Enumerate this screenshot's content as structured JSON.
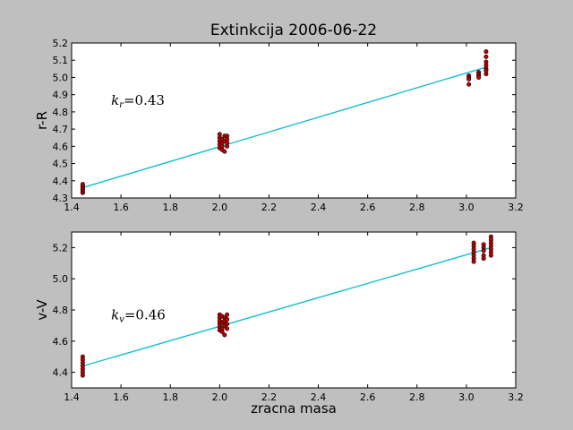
{
  "title": "Extinkcija 2006-06-22",
  "chart_data": [
    {
      "type": "scatter",
      "ylabel": "r-R",
      "xlabel": "",
      "annotation": {
        "k": "k",
        "sub": "r",
        "eq": "=0.43"
      },
      "xlim": [
        1.4,
        3.2
      ],
      "ylim": [
        4.3,
        5.2
      ],
      "xticks": [
        "1.4",
        "1.6",
        "1.8",
        "2.0",
        "2.2",
        "2.4",
        "2.6",
        "2.8",
        "3.0",
        "3.2"
      ],
      "yticks": [
        "4.3",
        "4.4",
        "4.5",
        "4.6",
        "4.7",
        "4.8",
        "4.9",
        "5.0",
        "5.1",
        "5.2"
      ],
      "fit": {
        "x": [
          1.445,
          3.08
        ],
        "y": [
          4.36,
          5.06
        ],
        "color": "#17becf"
      },
      "series": [
        {
          "color": "#c00000",
          "points": [
            [
              1.445,
              4.33
            ],
            [
              1.445,
              4.34
            ],
            [
              1.445,
              4.35
            ],
            [
              1.445,
              4.36
            ],
            [
              1.445,
              4.37
            ],
            [
              1.445,
              4.38
            ],
            [
              2.0,
              4.67
            ],
            [
              2.0,
              4.65
            ],
            [
              2.0,
              4.63
            ],
            [
              2.0,
              4.61
            ],
            [
              2.0,
              4.59
            ],
            [
              2.01,
              4.64
            ],
            [
              2.01,
              4.62
            ],
            [
              2.01,
              4.6
            ],
            [
              2.01,
              4.58
            ],
            [
              2.02,
              4.66
            ],
            [
              2.02,
              4.63
            ],
            [
              2.02,
              4.57
            ],
            [
              2.03,
              4.66
            ],
            [
              2.03,
              4.64
            ],
            [
              2.03,
              4.62
            ],
            [
              2.03,
              4.6
            ],
            [
              3.01,
              5.01
            ],
            [
              3.01,
              5.0
            ],
            [
              3.01,
              4.99
            ],
            [
              3.01,
              4.96
            ],
            [
              3.05,
              5.03
            ],
            [
              3.05,
              5.02
            ],
            [
              3.05,
              5.01
            ],
            [
              3.05,
              5.0
            ],
            [
              3.08,
              5.15
            ],
            [
              3.08,
              5.12
            ],
            [
              3.08,
              5.09
            ],
            [
              3.08,
              5.07
            ],
            [
              3.08,
              5.05
            ],
            [
              3.08,
              5.04
            ],
            [
              3.08,
              5.02
            ]
          ]
        }
      ]
    },
    {
      "type": "scatter",
      "ylabel": "v-V",
      "xlabel": "zracna masa",
      "annotation": {
        "k": "k",
        "sub": "v",
        "eq": "=0.46"
      },
      "xlim": [
        1.4,
        3.2
      ],
      "ylim": [
        4.3,
        5.3
      ],
      "xticks": [
        "1.4",
        "1.6",
        "1.8",
        "2.0",
        "2.2",
        "2.4",
        "2.6",
        "2.8",
        "3.0",
        "3.2"
      ],
      "yticks": [
        "4.4",
        "4.6",
        "4.8",
        "5.0",
        "5.2"
      ],
      "yticks_values": [
        4.4,
        4.6,
        4.8,
        5.0,
        5.2
      ],
      "fit": {
        "x": [
          1.445,
          3.1
        ],
        "y": [
          4.44,
          5.2
        ],
        "color": "#17becf"
      },
      "series": [
        {
          "color": "#c00000",
          "points": [
            [
              1.445,
              4.5
            ],
            [
              1.445,
              4.48
            ],
            [
              1.445,
              4.46
            ],
            [
              1.445,
              4.44
            ],
            [
              1.445,
              4.42
            ],
            [
              1.445,
              4.4
            ],
            [
              1.445,
              4.38
            ],
            [
              2.0,
              4.77
            ],
            [
              2.0,
              4.75
            ],
            [
              2.0,
              4.73
            ],
            [
              2.0,
              4.71
            ],
            [
              2.0,
              4.69
            ],
            [
              2.0,
              4.67
            ],
            [
              2.01,
              4.76
            ],
            [
              2.01,
              4.72
            ],
            [
              2.01,
              4.68
            ],
            [
              2.01,
              4.66
            ],
            [
              2.02,
              4.75
            ],
            [
              2.02,
              4.73
            ],
            [
              2.02,
              4.7
            ],
            [
              2.02,
              4.64
            ],
            [
              2.03,
              4.77
            ],
            [
              2.03,
              4.74
            ],
            [
              2.03,
              4.71
            ],
            [
              2.03,
              4.68
            ],
            [
              3.03,
              5.23
            ],
            [
              3.03,
              5.21
            ],
            [
              3.03,
              5.19
            ],
            [
              3.03,
              5.17
            ],
            [
              3.03,
              5.15
            ],
            [
              3.03,
              5.13
            ],
            [
              3.03,
              5.11
            ],
            [
              3.07,
              5.22
            ],
            [
              3.07,
              5.2
            ],
            [
              3.07,
              5.18
            ],
            [
              3.07,
              5.15
            ],
            [
              3.07,
              5.13
            ],
            [
              3.1,
              5.27
            ],
            [
              3.1,
              5.25
            ],
            [
              3.1,
              5.23
            ],
            [
              3.1,
              5.21
            ],
            [
              3.1,
              5.19
            ],
            [
              3.1,
              5.17
            ],
            [
              3.1,
              5.15
            ]
          ]
        }
      ]
    }
  ]
}
